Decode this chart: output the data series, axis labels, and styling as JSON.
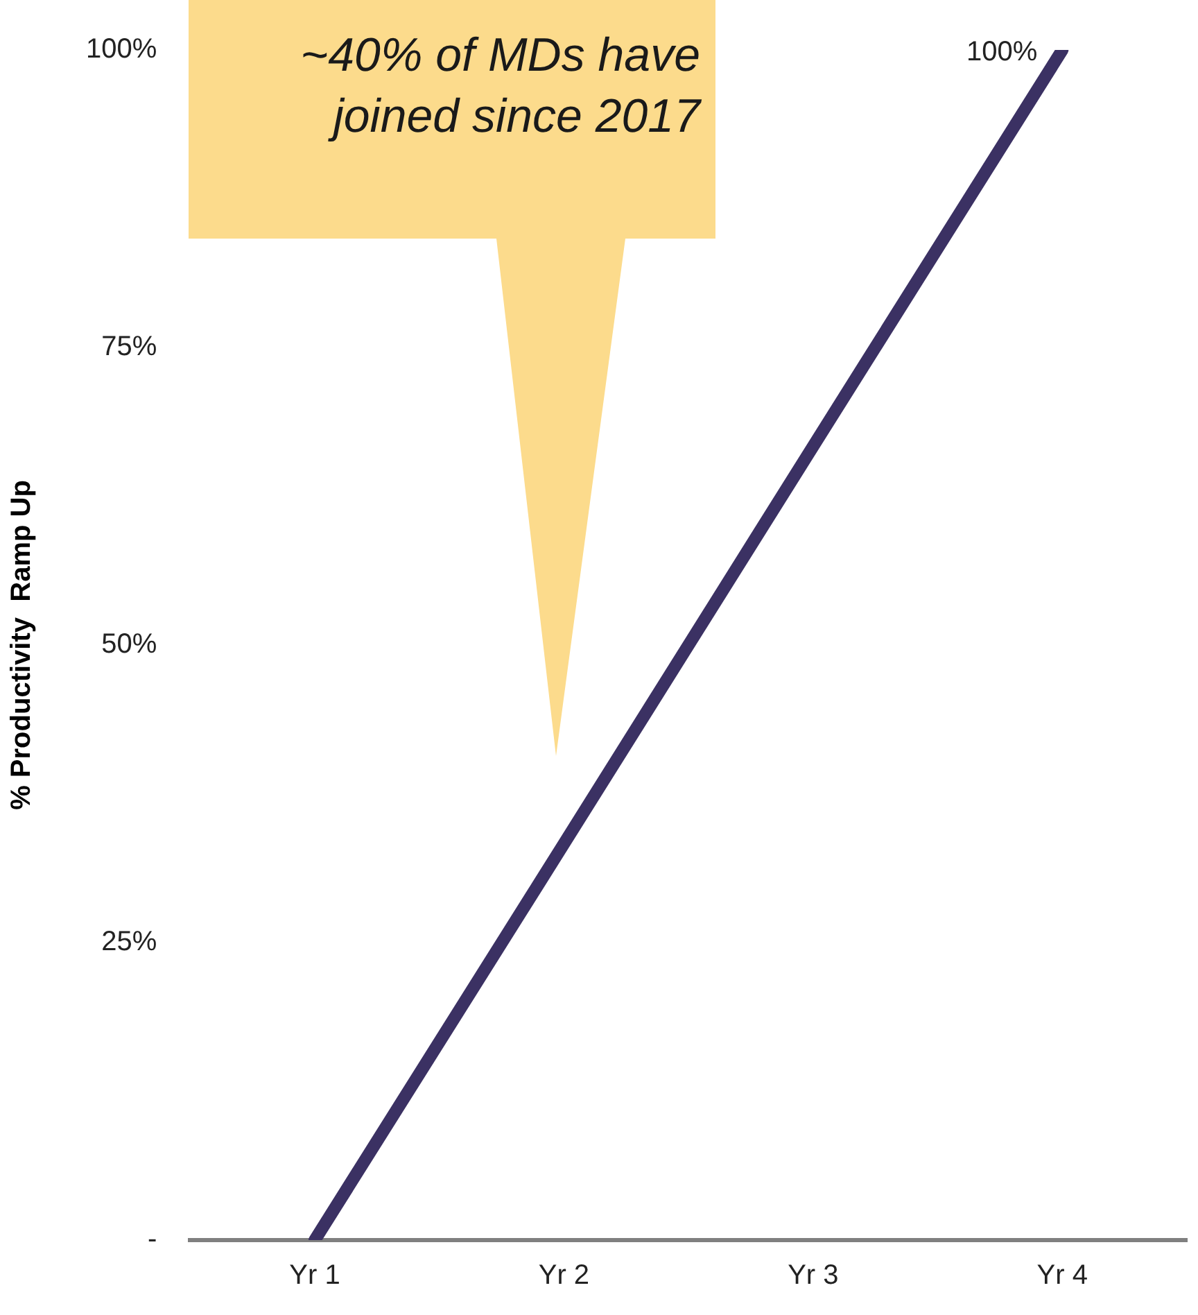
{
  "chart_data": {
    "type": "line",
    "ylabel": "% Productivity  Ramp Up",
    "categories": [
      "Yr 1",
      "Yr 2",
      "Yr 3",
      "Yr 4"
    ],
    "series": [
      {
        "color": "#3b3163",
        "values": [
          0,
          33.3,
          66.7,
          100
        ],
        "value_labels": [
          null,
          null,
          null,
          "100%"
        ]
      }
    ],
    "ylim": [
      0,
      100
    ],
    "yticks": [
      {
        "value": 0,
        "label": "-"
      },
      {
        "value": 25,
        "label": "25%"
      },
      {
        "value": 50,
        "label": "50%"
      },
      {
        "value": 75,
        "label": "75%"
      },
      {
        "value": 100,
        "label": "100%"
      }
    ],
    "grid": false,
    "legend": false,
    "marker": "none",
    "line_style": "solid",
    "annotations": [
      "~40% of MDs have joined since 2017"
    ]
  }
}
